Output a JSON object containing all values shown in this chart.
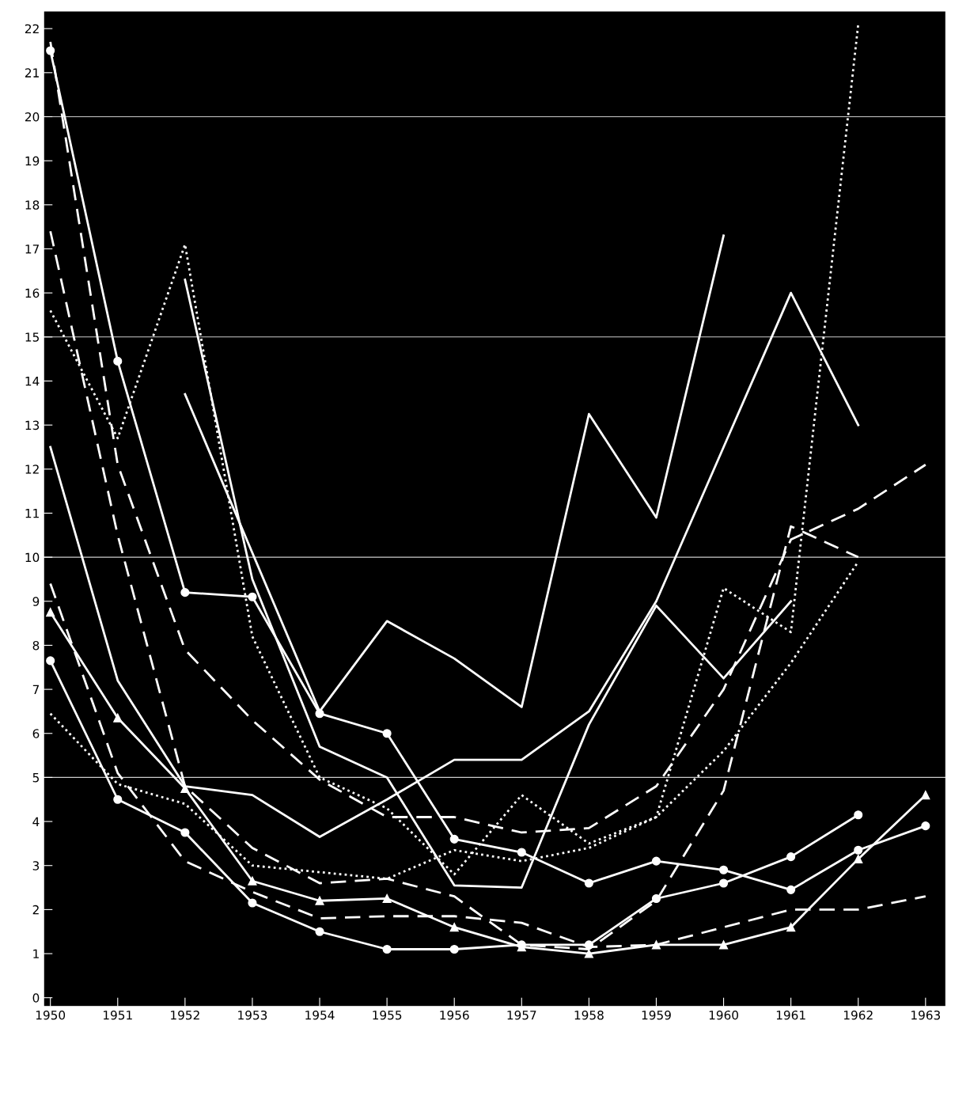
{
  "chart_data": {
    "type": "line",
    "x": [
      1950,
      1951,
      1952,
      1953,
      1954,
      1955,
      1956,
      1957,
      1958,
      1959,
      1960,
      1961,
      1962,
      1963
    ],
    "xlim": [
      1949.9,
      1963.3
    ],
    "xticks": [
      1950,
      1951,
      1952,
      1953,
      1954,
      1955,
      1956,
      1957,
      1958,
      1959,
      1960,
      1961,
      1962,
      1963
    ],
    "ylim": [
      -0.2,
      22.4
    ],
    "yticks": [
      0,
      1,
      2,
      3,
      4,
      5,
      6,
      7,
      8,
      9,
      10,
      11,
      12,
      13,
      14,
      15,
      16,
      17,
      18,
      19,
      20,
      21,
      22
    ],
    "grid": false,
    "ref_lines": [
      {
        "axis": "y",
        "value": 5,
        "color": "#cccccc"
      },
      {
        "axis": "y",
        "value": 10,
        "color": "#cccccc"
      },
      {
        "axis": "y",
        "value": 15,
        "color": "#cccccc"
      },
      {
        "axis": "y",
        "value": 20,
        "color": "#cccccc"
      }
    ],
    "series": [
      {
        "color": "#ffffff",
        "line_style": "solid",
        "marker": "none",
        "x": [
          1952,
          1954,
          1955,
          1956,
          1957,
          1958,
          1959,
          1960
        ],
        "values": [
          13.7,
          6.5,
          8.55,
          7.7,
          6.6,
          13.25,
          10.9,
          17.3
        ]
      },
      {
        "color": "#ffffff",
        "line_style": "solid",
        "marker": "circle",
        "values": [
          21.5,
          14.45,
          9.2,
          9.1,
          6.45,
          6.0,
          3.6,
          3.3,
          2.6,
          3.1,
          2.9,
          2.45,
          3.35,
          3.9
        ]
      },
      {
        "color": "#ffffff",
        "line_style": "dashed",
        "marker": "none",
        "values": [
          21.7,
          12.1,
          7.9,
          6.3,
          4.95,
          4.1,
          4.1,
          3.75,
          3.85,
          4.8,
          7.0,
          10.4,
          11.1,
          12.1
        ]
      },
      {
        "color": "#ffffff",
        "line_style": "dashed",
        "marker": "none",
        "values": [
          17.4,
          10.5,
          4.8,
          3.4,
          2.6,
          2.7,
          2.3,
          1.2,
          1.1,
          2.2,
          4.7,
          10.7,
          10.0,
          null
        ]
      },
      {
        "color": "#ffffff",
        "line_style": "dotted",
        "marker": "none",
        "values": [
          15.6,
          12.7,
          17.1,
          8.2,
          5.0,
          4.3,
          2.8,
          4.6,
          3.5,
          4.1,
          9.3,
          8.3,
          22.1,
          null
        ]
      },
      {
        "color": "#ffffff",
        "line_style": "solid",
        "marker": "none",
        "values": [
          12.5,
          7.2,
          4.8,
          4.6,
          3.65,
          4.5,
          5.4,
          5.4,
          6.5,
          9.0,
          12.5,
          16.0,
          13.0,
          null
        ]
      },
      {
        "color": "#ffffff",
        "line_style": "solid",
        "marker": "none",
        "x": [
          1952,
          1953,
          1954,
          1955,
          1956,
          1957,
          1958,
          1959,
          1960,
          1961
        ],
        "values": [
          16.3,
          9.5,
          5.7,
          5.0,
          2.55,
          2.5,
          6.2,
          8.9,
          7.25,
          9.0
        ]
      },
      {
        "color": "#ffffff",
        "line_style": "dashed",
        "marker": "none",
        "values": [
          9.4,
          5.1,
          3.1,
          2.4,
          1.8,
          1.85,
          1.85,
          1.7,
          1.15,
          1.2,
          1.6,
          2.0,
          2.0,
          2.3
        ]
      },
      {
        "color": "#ffffff",
        "line_style": "solid",
        "marker": "triangle",
        "values": [
          8.75,
          6.35,
          4.75,
          2.65,
          2.2,
          2.25,
          1.6,
          1.15,
          1.0,
          1.2,
          1.2,
          1.6,
          3.15,
          4.6
        ]
      },
      {
        "color": "#ffffff",
        "line_style": "solid",
        "marker": "circle",
        "values": [
          7.65,
          4.5,
          3.75,
          2.15,
          1.5,
          1.1,
          1.1,
          1.2,
          1.2,
          2.25,
          2.6,
          3.2,
          4.15,
          null
        ]
      },
      {
        "color": "#ffffff",
        "line_style": "dotted",
        "marker": "none",
        "values": [
          6.45,
          4.85,
          4.4,
          3.0,
          2.85,
          2.7,
          3.35,
          3.1,
          3.4,
          4.1,
          5.6,
          7.6,
          9.9,
          null
        ]
      }
    ]
  }
}
